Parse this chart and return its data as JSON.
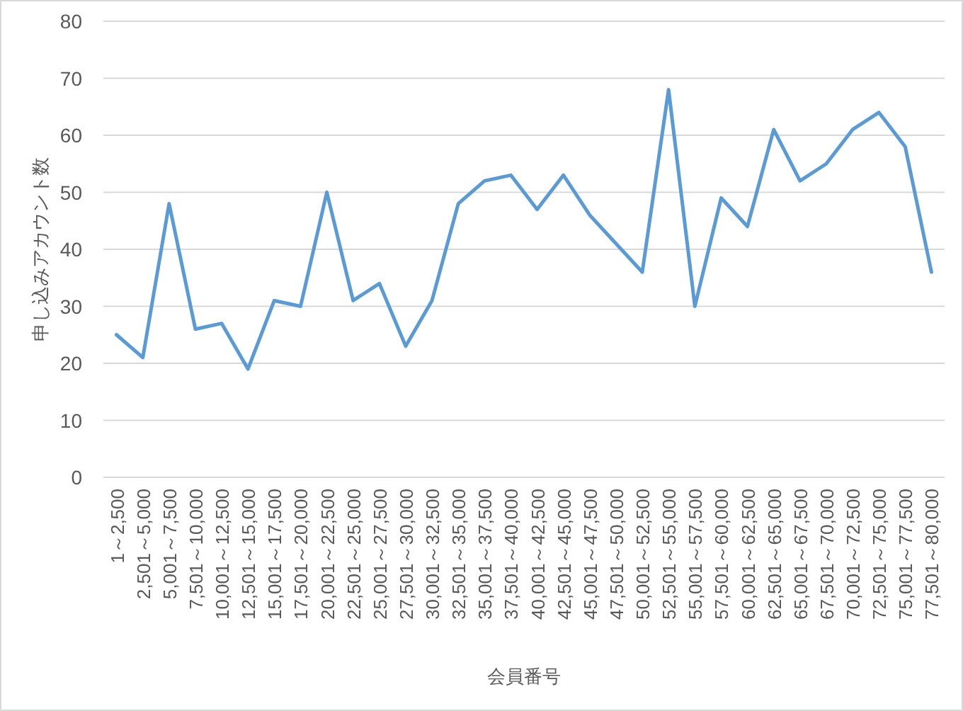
{
  "chart_data": {
    "type": "line",
    "xlabel": "会員番号",
    "ylabel": "申し込みアカウント数",
    "categories": [
      "1～2,500",
      "2,501～5,000",
      "5,001～7,500",
      "7,501～10,000",
      "10,001～12,500",
      "12,501～15,000",
      "15,001～17,500",
      "17,501～20,000",
      "20,001～22,500",
      "22,501～25,000",
      "25,001～27,500",
      "27,501～30,000",
      "30,001～32,500",
      "32,501～35,000",
      "35,001～37,500",
      "37,501～40,000",
      "40,001～42,500",
      "42,501～45,000",
      "45,001～47,500",
      "47,501～50,000",
      "50,001～52,500",
      "52,501～55,000",
      "55,001～57,500",
      "57,501～60,000",
      "60,001～62,500",
      "62,501～65,000",
      "65,001～67,500",
      "67,501～70,000",
      "70,001～72,500",
      "72,501～75,000",
      "75,001～77,500",
      "77,501～80,000"
    ],
    "series": [
      {
        "color": "#5b9bd5",
        "values": [
          25,
          21,
          48,
          26,
          27,
          19,
          31,
          30,
          50,
          31,
          34,
          23,
          31,
          48,
          52,
          53,
          47,
          53,
          46,
          41,
          36,
          68,
          30,
          49,
          44,
          61,
          52,
          55,
          61,
          64,
          58,
          36
        ]
      }
    ],
    "ylim": [
      0,
      80
    ],
    "yticks": [
      0,
      10,
      20,
      30,
      40,
      50,
      60,
      70,
      80
    ],
    "grid": "y",
    "marker": "none",
    "line_style": "solid"
  }
}
